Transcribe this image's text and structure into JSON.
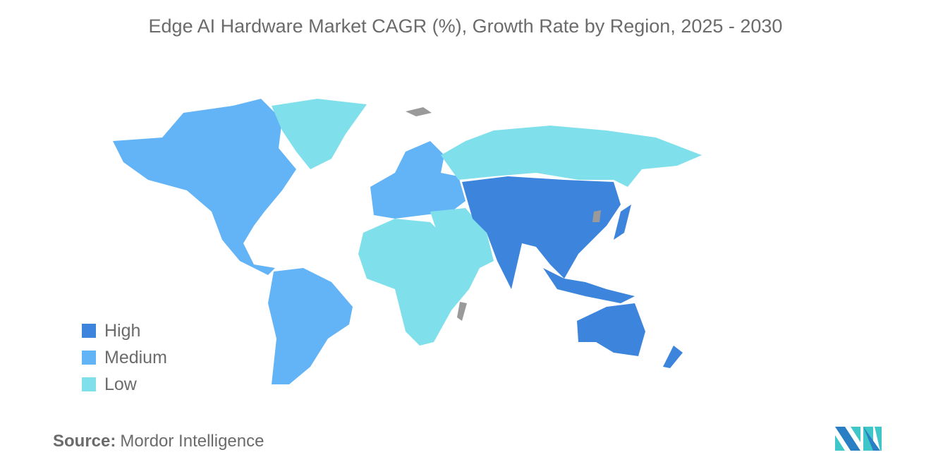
{
  "title": "Edge AI Hardware Market CAGR (%), Growth Rate by Region, 2025 - 2030",
  "legend": [
    {
      "label": "High",
      "color": "#3d85dc"
    },
    {
      "label": "Medium",
      "color": "#63b3f7"
    },
    {
      "label": "Low",
      "color": "#7fe0ec"
    }
  ],
  "no_data_color": "#9a9a9a",
  "regions": {
    "north_america": "Medium",
    "south_america": "Medium",
    "europe": "Medium",
    "asia_pacific": "High",
    "middle_east_and_africa": "Low",
    "russia": "Low",
    "greenland": "Low"
  },
  "source": {
    "label": "Source:",
    "value": "Mordor Intelligence"
  }
}
